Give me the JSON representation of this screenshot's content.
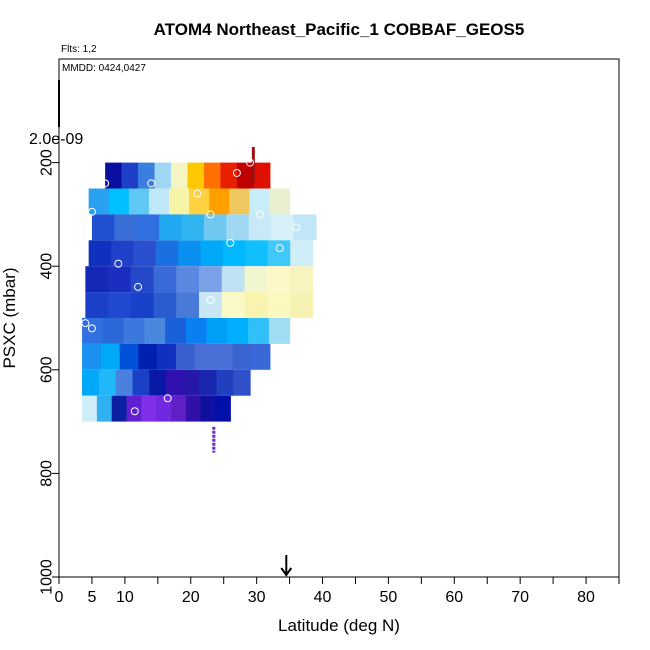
{
  "chart_data": {
    "type": "heatmap",
    "title": "ATOM4 Northeast_Pacific_1 COBBAF_GEOS5",
    "annotations": {
      "flights": "Flts: 1,2",
      "dates": "MMDD: 0424,0427"
    },
    "xlabel": "Latitude (deg N)",
    "ylabel": "PSXC (mbar)",
    "xlim": [
      0,
      85
    ],
    "ylim": [
      1000,
      0
    ],
    "x_ticks": [
      0,
      5,
      10,
      20,
      30,
      40,
      50,
      60,
      70,
      80
    ],
    "x_tick_labels": [
      "0",
      "5",
      "10",
      "20",
      "30",
      "40",
      "50",
      "60",
      "70",
      "80"
    ],
    "x_minor_ticks": [
      15,
      25,
      35,
      45,
      55,
      65,
      75,
      85
    ],
    "y_ticks": [
      200,
      400,
      600,
      800,
      1000
    ],
    "y_tick_labels": [
      "200",
      "400",
      "600",
      "800",
      "1000"
    ],
    "colorbar_max_label": "2.0e-09",
    "arrow_latitude": 34.5,
    "bands": [
      {
        "p": 225,
        "lat": [
          7,
          32
        ],
        "colors": [
          "#0a0fa0",
          "#1e3fc8",
          "#3a7fe0",
          "#9fd6f2",
          "#f4f5c0",
          "#ffc800",
          "#ff7000",
          "#e82000",
          "#c00000",
          "#e01000"
        ]
      },
      {
        "p": 275,
        "lat": [
          4.5,
          35
        ],
        "colors": [
          "#2aa0f0",
          "#00c0ff",
          "#60c8f5",
          "#c0e8f8",
          "#f7f4a8",
          "#ffd040",
          "#ffa000",
          "#f0c860",
          "#c8ecf8",
          "#e8f0d0"
        ]
      },
      {
        "p": 325,
        "lat": [
          5,
          39
        ],
        "colors": [
          "#2050d0",
          "#3a6fd8",
          "#3070e0",
          "#20a8f0",
          "#30b4f0",
          "#70c8f0",
          "#a0d8f4",
          "#c8eaf8",
          "#d8f0f8",
          "#c0e6f8"
        ]
      },
      {
        "p": 375,
        "lat": [
          4.5,
          38.5
        ],
        "colors": [
          "#1030c0",
          "#2040c8",
          "#2a50d0",
          "#1a70e0",
          "#0a90f0",
          "#00a8f8",
          "#00b8ff",
          "#10c0ff",
          "#40c8f8",
          "#d0eef8"
        ]
      },
      {
        "p": 425,
        "lat": [
          4,
          38.5
        ],
        "colors": [
          "#1428b8",
          "#1a2fc0",
          "#2548c8",
          "#3a6ad8",
          "#5a88e0",
          "#7aa0e8",
          "#c0e0f4",
          "#f0f6d0",
          "#fcf8c8",
          "#f8f4c0"
        ]
      },
      {
        "p": 475,
        "lat": [
          4,
          38.5
        ],
        "colors": [
          "#1a40c8",
          "#2048d0",
          "#1840c8",
          "#2a5cd0",
          "#4a7ad8",
          "#c8e6f4",
          "#fafac8",
          "#f8f4b0",
          "#fcf8c0",
          "#f6f2b4"
        ]
      },
      {
        "p": 525,
        "lat": [
          3.5,
          35
        ],
        "colors": [
          "#3070e0",
          "#2a68d8",
          "#3a76dc",
          "#4a88e0",
          "#1a60d8",
          "#0a80f0",
          "#00a0f8",
          "#00b0ff",
          "#30c0f8",
          "#a0dcf4"
        ]
      },
      {
        "p": 575,
        "lat": [
          3.5,
          32
        ],
        "colors": [
          "#1a90f0",
          "#00a8f8",
          "#0050d8",
          "#0020b0",
          "#1030c0",
          "#3a60d0",
          "#4a70d8",
          "#4a70d8",
          "#3a64d0",
          "#3a68d8"
        ]
      },
      {
        "p": 625,
        "lat": [
          3.5,
          29
        ],
        "colors": [
          "#00a8f8",
          "#20b8f8",
          "#4a80e0",
          "#1a40c8",
          "#0a18a8",
          "#3010b0",
          "#2818a8",
          "#1a28b0",
          "#2040c0",
          "#3050c8"
        ]
      },
      {
        "p": 675,
        "lat": [
          3.5,
          26
        ],
        "colors": [
          "#d0eef8",
          "#30b0f0",
          "#0a20a0",
          "#6020d0",
          "#8030e8",
          "#7028e0",
          "#6020c8",
          "#3010a8",
          "#1010a0",
          "#0010a8"
        ]
      }
    ],
    "points": [
      {
        "lat": 7,
        "p": 240
      },
      {
        "lat": 14,
        "p": 240
      },
      {
        "lat": 21,
        "p": 260
      },
      {
        "lat": 27,
        "p": 220
      },
      {
        "lat": 29,
        "p": 200
      },
      {
        "lat": 5,
        "p": 295
      },
      {
        "lat": 23,
        "p": 300
      },
      {
        "lat": 30.5,
        "p": 300
      },
      {
        "lat": 36,
        "p": 325
      },
      {
        "lat": 26,
        "p": 355
      },
      {
        "lat": 33.5,
        "p": 365
      },
      {
        "lat": 9,
        "p": 395
      },
      {
        "lat": 12,
        "p": 440
      },
      {
        "lat": 23,
        "p": 465
      },
      {
        "lat": 4,
        "p": 510
      },
      {
        "lat": 5,
        "p": 520
      },
      {
        "lat": 16.5,
        "p": 655
      },
      {
        "lat": 11.5,
        "p": 680
      }
    ],
    "profile_markers": [
      {
        "lat": 29.5,
        "p_top": 170,
        "p_bottom": 240,
        "color": "#a01010"
      },
      {
        "lat": 23.5,
        "p_top": 710,
        "p_bottom": 760,
        "color": "#6a28c8"
      }
    ]
  }
}
